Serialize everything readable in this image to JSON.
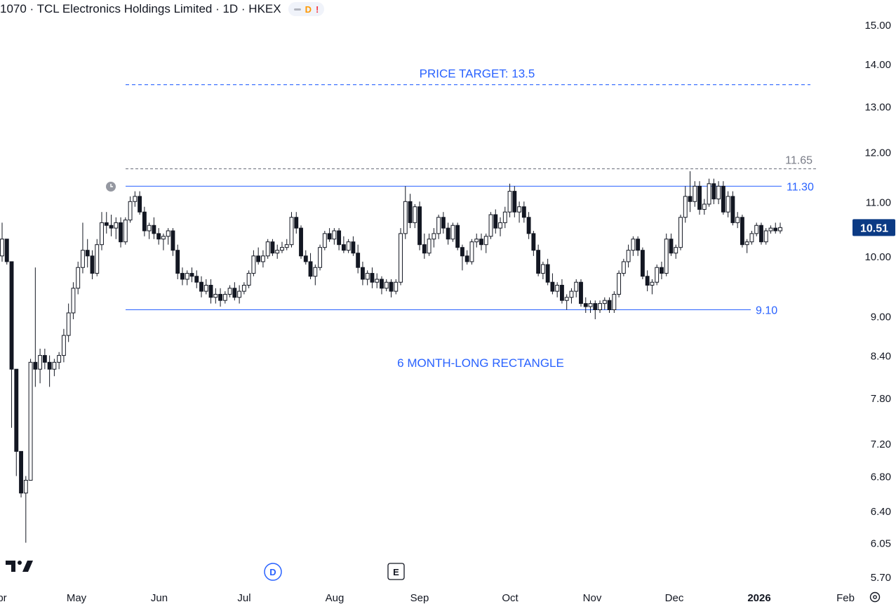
{
  "header": {
    "title": "1070 · TCL Electronics Holdings Limited · 1D · HKEX",
    "badge_d": "D",
    "badge_alert": "!"
  },
  "chart_data": {
    "type": "candlestick",
    "title": "1070 · TCL Electronics Holdings Limited · 1D · HKEX",
    "y_scale": "log",
    "ylim": [
      5.6,
      15.4
    ],
    "y_ticks": [
      "15.00",
      "14.00",
      "13.00",
      "12.00",
      "11.00",
      "10.00",
      "9.00",
      "8.40",
      "7.80",
      "7.20",
      "6.80",
      "6.40",
      "6.05",
      "5.70"
    ],
    "x_ticks": [
      "Apr",
      "May",
      "Jun",
      "Jul",
      "Aug",
      "Sep",
      "Oct",
      "Nov",
      "Dec",
      "2026",
      "Feb"
    ],
    "last_price": "10.51",
    "levels": [
      {
        "value": 13.5,
        "style": "dashed",
        "color": "#2962ff",
        "label": "PRICE TARGET: 13.5"
      },
      {
        "value": 11.65,
        "style": "dashed",
        "color": "#787b86",
        "label": "11.65"
      },
      {
        "value": 11.3,
        "style": "solid",
        "color": "#2962ff",
        "label": "11.30"
      },
      {
        "value": 9.1,
        "style": "solid",
        "color": "#2962ff",
        "label": "9.10"
      }
    ],
    "annotation": "6 MONTH-LONG RECTANGLE",
    "markers": [
      "D",
      "E"
    ],
    "candles": [
      [
        10.0,
        10.6,
        9.9,
        10.3
      ],
      [
        10.3,
        10.3,
        9.85,
        9.9
      ],
      [
        9.9,
        9.9,
        7.4,
        8.2
      ],
      [
        8.2,
        8.2,
        6.8,
        7.1
      ],
      [
        7.1,
        7.1,
        6.55,
        6.6
      ],
      [
        6.6,
        6.8,
        6.05,
        6.75
      ],
      [
        6.75,
        8.35,
        6.75,
        8.3
      ],
      [
        8.3,
        9.8,
        7.95,
        8.2
      ],
      [
        8.2,
        8.5,
        8.0,
        8.4
      ],
      [
        8.4,
        8.5,
        8.2,
        8.3
      ],
      [
        8.3,
        8.4,
        7.95,
        8.2
      ],
      [
        8.2,
        8.35,
        8.1,
        8.3
      ],
      [
        8.3,
        8.45,
        8.2,
        8.4
      ],
      [
        8.4,
        8.8,
        8.3,
        8.7
      ],
      [
        8.7,
        9.2,
        8.6,
        9.05
      ],
      [
        9.05,
        9.55,
        8.95,
        9.45
      ],
      [
        9.45,
        9.9,
        9.35,
        9.8
      ],
      [
        9.8,
        10.6,
        9.7,
        10.1
      ],
      [
        10.1,
        10.3,
        9.8,
        10.0
      ],
      [
        10.0,
        10.1,
        9.6,
        9.7
      ],
      [
        9.7,
        10.3,
        9.65,
        10.2
      ],
      [
        10.2,
        10.8,
        10.1,
        10.6
      ],
      [
        10.6,
        10.8,
        10.4,
        10.55
      ],
      [
        10.55,
        10.75,
        10.35,
        10.5
      ],
      [
        10.5,
        10.7,
        10.3,
        10.6
      ],
      [
        10.6,
        10.7,
        10.15,
        10.25
      ],
      [
        10.25,
        10.7,
        10.2,
        10.65
      ],
      [
        10.65,
        11.1,
        10.6,
        11.0
      ],
      [
        11.0,
        11.2,
        10.9,
        11.1
      ],
      [
        11.1,
        11.2,
        10.75,
        10.8
      ],
      [
        10.8,
        10.9,
        10.35,
        10.45
      ],
      [
        10.45,
        10.6,
        10.3,
        10.55
      ],
      [
        10.55,
        10.7,
        10.3,
        10.4
      ],
      [
        10.4,
        10.5,
        10.2,
        10.3
      ],
      [
        10.3,
        10.4,
        10.1,
        10.35
      ],
      [
        10.35,
        10.5,
        10.2,
        10.45
      ],
      [
        10.45,
        10.5,
        10.0,
        10.1
      ],
      [
        10.1,
        10.2,
        9.6,
        9.7
      ],
      [
        9.7,
        9.8,
        9.5,
        9.6
      ],
      [
        9.6,
        9.75,
        9.5,
        9.7
      ],
      [
        9.7,
        9.8,
        9.55,
        9.65
      ],
      [
        9.65,
        9.75,
        9.45,
        9.55
      ],
      [
        9.55,
        9.65,
        9.3,
        9.4
      ],
      [
        9.4,
        9.6,
        9.35,
        9.5
      ],
      [
        9.5,
        9.6,
        9.2,
        9.3
      ],
      [
        9.3,
        9.45,
        9.2,
        9.35
      ],
      [
        9.35,
        9.45,
        9.15,
        9.25
      ],
      [
        9.25,
        9.4,
        9.2,
        9.35
      ],
      [
        9.35,
        9.5,
        9.3,
        9.45
      ],
      [
        9.45,
        9.55,
        9.25,
        9.3
      ],
      [
        9.3,
        9.5,
        9.2,
        9.4
      ],
      [
        9.4,
        9.55,
        9.35,
        9.5
      ],
      [
        9.5,
        9.75,
        9.45,
        9.7
      ],
      [
        9.7,
        10.1,
        9.65,
        10.0
      ],
      [
        10.0,
        10.15,
        9.85,
        9.9
      ],
      [
        9.9,
        10.1,
        9.8,
        10.0
      ],
      [
        10.0,
        10.3,
        9.95,
        10.25
      ],
      [
        10.25,
        10.3,
        10.0,
        10.05
      ],
      [
        10.05,
        10.2,
        9.95,
        10.1
      ],
      [
        10.1,
        10.25,
        10.05,
        10.15
      ],
      [
        10.15,
        10.3,
        10.1,
        10.2
      ],
      [
        10.2,
        10.8,
        10.15,
        10.7
      ],
      [
        10.7,
        10.8,
        10.4,
        10.5
      ],
      [
        10.5,
        10.55,
        9.95,
        10.0
      ],
      [
        10.0,
        10.1,
        9.85,
        9.9
      ],
      [
        9.9,
        10.05,
        9.6,
        9.65
      ],
      [
        9.65,
        9.85,
        9.5,
        9.8
      ],
      [
        9.8,
        10.2,
        9.75,
        10.15
      ],
      [
        10.15,
        10.45,
        10.1,
        10.4
      ],
      [
        10.4,
        10.5,
        10.25,
        10.3
      ],
      [
        10.3,
        10.5,
        10.2,
        10.45
      ],
      [
        10.45,
        10.5,
        10.1,
        10.2
      ],
      [
        10.2,
        10.35,
        10.05,
        10.1
      ],
      [
        10.1,
        10.3,
        10.05,
        10.25
      ],
      [
        10.25,
        10.35,
        10.0,
        10.05
      ],
      [
        10.05,
        10.2,
        9.7,
        9.8
      ],
      [
        9.8,
        9.9,
        9.5,
        9.6
      ],
      [
        9.6,
        9.75,
        9.5,
        9.7
      ],
      [
        9.7,
        9.8,
        9.45,
        9.55
      ],
      [
        9.55,
        9.7,
        9.45,
        9.6
      ],
      [
        9.6,
        9.65,
        9.35,
        9.45
      ],
      [
        9.45,
        9.6,
        9.4,
        9.55
      ],
      [
        9.55,
        9.6,
        9.3,
        9.4
      ],
      [
        9.4,
        9.6,
        9.35,
        9.55
      ],
      [
        9.55,
        10.5,
        9.5,
        10.4
      ],
      [
        10.4,
        11.3,
        10.3,
        11.0
      ],
      [
        11.0,
        11.15,
        10.5,
        10.6
      ],
      [
        10.6,
        10.95,
        10.5,
        10.9
      ],
      [
        10.9,
        11.0,
        10.1,
        10.2
      ],
      [
        10.2,
        10.4,
        9.95,
        10.05
      ],
      [
        10.05,
        10.4,
        10.0,
        10.3
      ],
      [
        10.3,
        10.5,
        10.15,
        10.4
      ],
      [
        10.4,
        10.75,
        10.3,
        10.7
      ],
      [
        10.7,
        10.8,
        10.4,
        10.5
      ],
      [
        10.5,
        10.6,
        10.2,
        10.3
      ],
      [
        10.3,
        10.6,
        10.25,
        10.55
      ],
      [
        10.55,
        10.6,
        10.1,
        10.15
      ],
      [
        10.15,
        10.2,
        9.75,
        10.0
      ],
      [
        10.0,
        10.1,
        9.85,
        9.9
      ],
      [
        9.9,
        10.3,
        9.85,
        10.25
      ],
      [
        10.25,
        10.4,
        10.15,
        10.3
      ],
      [
        10.3,
        10.4,
        10.1,
        10.2
      ],
      [
        10.2,
        10.4,
        10.05,
        10.35
      ],
      [
        10.35,
        10.8,
        10.3,
        10.75
      ],
      [
        10.75,
        10.85,
        10.4,
        10.5
      ],
      [
        10.5,
        10.7,
        10.35,
        10.6
      ],
      [
        10.6,
        10.9,
        10.5,
        10.8
      ],
      [
        10.8,
        11.35,
        10.7,
        11.2
      ],
      [
        11.2,
        11.3,
        10.7,
        10.8
      ],
      [
        10.8,
        11.0,
        10.6,
        10.9
      ],
      [
        10.9,
        11.0,
        10.6,
        10.7
      ],
      [
        10.7,
        10.8,
        10.3,
        10.4
      ],
      [
        10.4,
        10.45,
        10.0,
        10.1
      ],
      [
        10.1,
        10.2,
        9.65,
        9.7
      ],
      [
        9.7,
        9.9,
        9.6,
        9.85
      ],
      [
        9.85,
        9.95,
        9.5,
        9.55
      ],
      [
        9.55,
        9.7,
        9.35,
        9.4
      ],
      [
        9.4,
        9.55,
        9.3,
        9.5
      ],
      [
        9.5,
        9.6,
        9.2,
        9.25
      ],
      [
        9.25,
        9.35,
        9.1,
        9.3
      ],
      [
        9.3,
        9.45,
        9.2,
        9.4
      ],
      [
        9.4,
        9.6,
        9.3,
        9.55
      ],
      [
        9.55,
        9.6,
        9.15,
        9.2
      ],
      [
        9.2,
        9.3,
        9.05,
        9.15
      ],
      [
        9.15,
        9.25,
        9.05,
        9.2
      ],
      [
        9.2,
        9.25,
        8.95,
        9.1
      ],
      [
        9.1,
        9.25,
        9.05,
        9.2
      ],
      [
        9.2,
        9.3,
        9.1,
        9.25
      ],
      [
        9.25,
        9.3,
        9.05,
        9.1
      ],
      [
        9.1,
        9.4,
        9.05,
        9.35
      ],
      [
        9.35,
        9.75,
        9.3,
        9.7
      ],
      [
        9.7,
        9.95,
        9.65,
        9.9
      ],
      [
        9.9,
        10.2,
        9.8,
        10.1
      ],
      [
        10.1,
        10.35,
        10.0,
        10.3
      ],
      [
        10.3,
        10.35,
        10.0,
        10.1
      ],
      [
        10.1,
        10.15,
        9.6,
        9.65
      ],
      [
        9.65,
        9.75,
        9.4,
        9.5
      ],
      [
        9.5,
        9.6,
        9.35,
        9.55
      ],
      [
        9.55,
        9.85,
        9.5,
        9.8
      ],
      [
        9.8,
        9.9,
        9.6,
        9.7
      ],
      [
        9.7,
        10.4,
        9.65,
        10.3
      ],
      [
        10.3,
        10.4,
        10.0,
        10.05
      ],
      [
        10.05,
        10.2,
        9.95,
        10.15
      ],
      [
        10.15,
        10.75,
        10.1,
        10.7
      ],
      [
        10.7,
        11.3,
        10.6,
        11.1
      ],
      [
        11.1,
        11.6,
        10.8,
        11.0
      ],
      [
        11.0,
        11.4,
        10.9,
        11.3
      ],
      [
        11.3,
        11.4,
        10.75,
        10.85
      ],
      [
        10.85,
        11.05,
        10.75,
        10.95
      ],
      [
        10.95,
        11.45,
        10.9,
        11.35
      ],
      [
        11.35,
        11.45,
        10.95,
        11.05
      ],
      [
        11.05,
        11.4,
        10.95,
        11.3
      ],
      [
        11.3,
        11.4,
        10.75,
        10.8
      ],
      [
        10.8,
        11.2,
        10.7,
        11.1
      ],
      [
        11.1,
        11.2,
        10.55,
        10.6
      ],
      [
        10.6,
        10.8,
        10.5,
        10.7
      ],
      [
        10.7,
        10.75,
        10.15,
        10.2
      ],
      [
        10.2,
        10.3,
        10.05,
        10.25
      ],
      [
        10.25,
        10.45,
        10.2,
        10.4
      ],
      [
        10.4,
        10.6,
        10.35,
        10.55
      ],
      [
        10.55,
        10.6,
        10.2,
        10.25
      ],
      [
        10.25,
        10.5,
        10.2,
        10.45
      ],
      [
        10.45,
        10.55,
        10.4,
        10.5
      ],
      [
        10.5,
        10.6,
        10.4,
        10.45
      ],
      [
        10.45,
        10.6,
        10.4,
        10.51
      ]
    ]
  }
}
